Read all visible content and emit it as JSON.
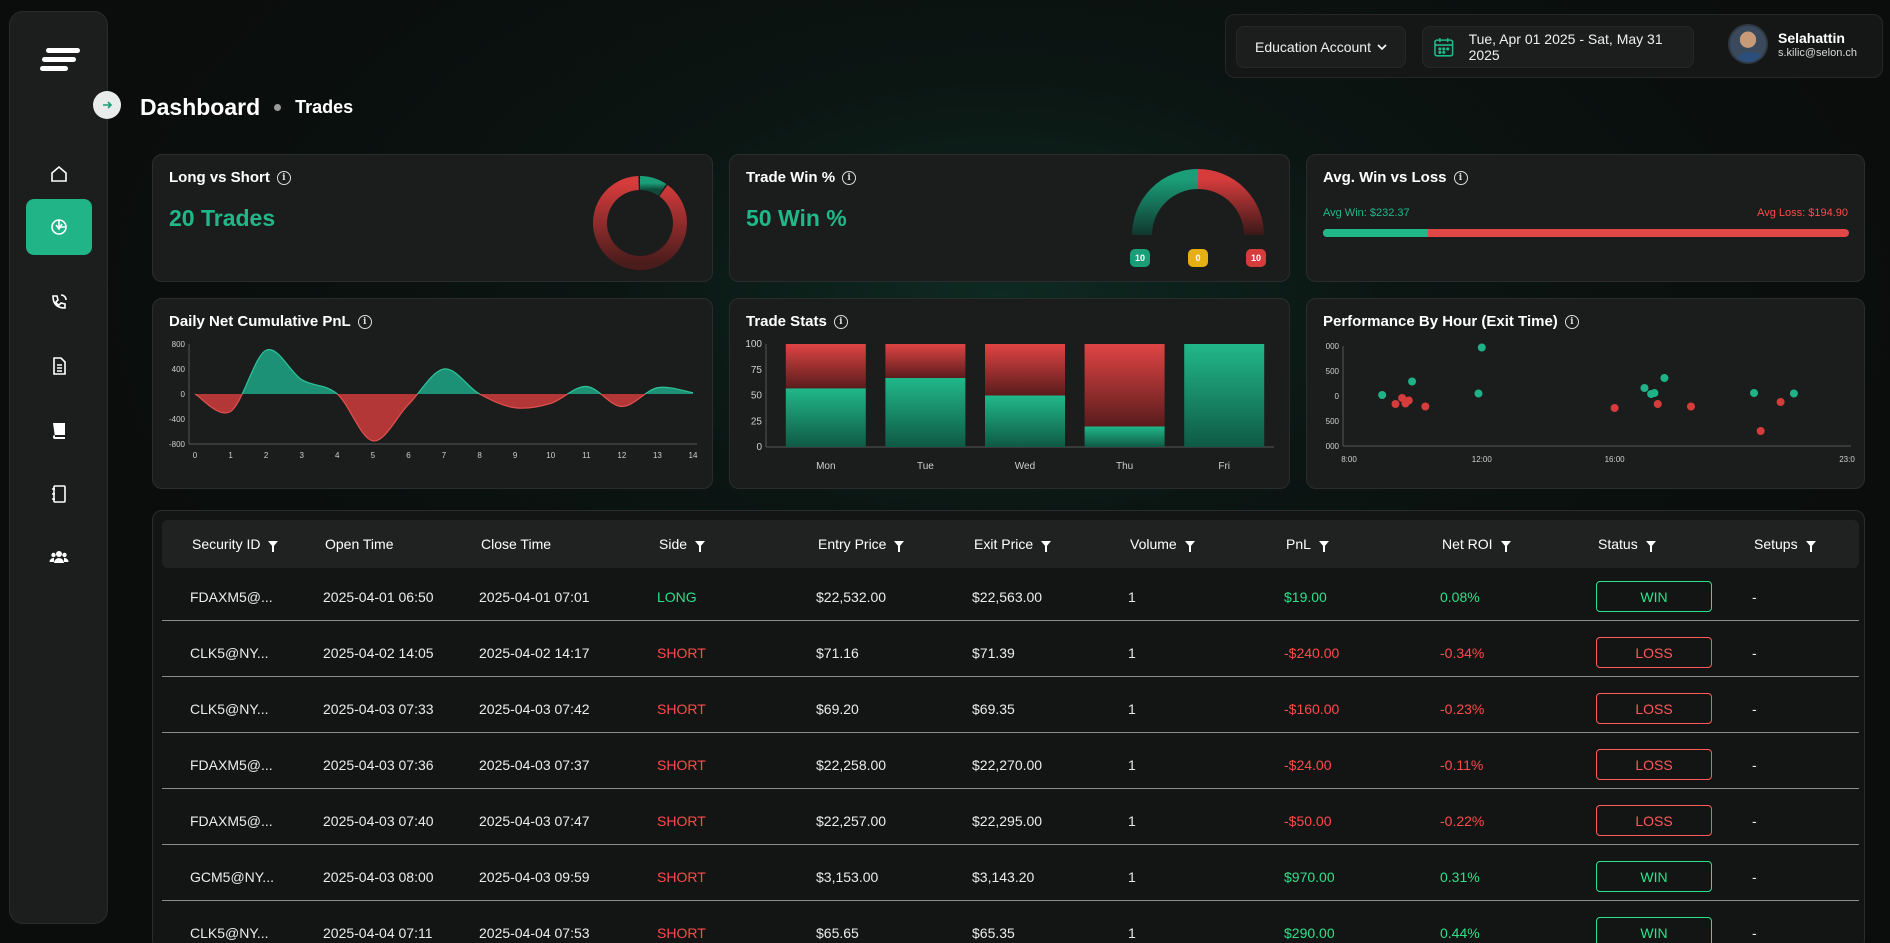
{
  "header": {
    "account_label": "Education Account",
    "date_range": "Tue, Apr 01 2025 - Sat, May 31 2025",
    "user_name": "Selahattin",
    "user_email": "s.kilic@selon.ch"
  },
  "breadcrumb": {
    "main": "Dashboard",
    "sub": "Trades"
  },
  "sidebar": {
    "items": [
      {
        "icon": "home-icon"
      },
      {
        "icon": "trades-icon",
        "active": true
      },
      {
        "icon": "phone-icon"
      },
      {
        "icon": "notes-icon"
      },
      {
        "icon": "journal-icon"
      },
      {
        "icon": "playbook-icon"
      },
      {
        "icon": "community-icon"
      }
    ]
  },
  "cards": {
    "long_short": {
      "title": "Long vs Short",
      "value": "20 Trades"
    },
    "win_pct": {
      "title": "Trade Win %",
      "value": "50 Win %",
      "legend": [
        "10",
        "0",
        "10"
      ]
    },
    "avg_win_loss": {
      "title": "Avg. Win vs Loss",
      "avg_win": "Avg Win: $232.37",
      "avg_loss": "Avg Loss: $194.90",
      "win_fraction": 0.2
    },
    "daily_pnl": {
      "title": "Daily Net Cumulative PnL"
    },
    "trade_stats": {
      "title": "Trade Stats"
    },
    "perf_hour": {
      "title": "Performance By Hour (Exit Time)"
    }
  },
  "chart_data": [
    {
      "type": "donut",
      "name": "long-vs-short",
      "values": [
        2,
        18
      ],
      "colors": [
        "#1a9e78",
        "#d63c3c"
      ]
    },
    {
      "type": "gauge",
      "name": "trade-win-pct",
      "values": [
        10,
        0,
        10
      ],
      "colors": [
        "#1a9e78",
        "#e6b012",
        "#d63c3c"
      ]
    },
    {
      "type": "area",
      "name": "daily-net-cumulative-pnl",
      "x": [
        0,
        1,
        2,
        3,
        4,
        5,
        6,
        7,
        8,
        9,
        10,
        11,
        12,
        13,
        14
      ],
      "y": [
        0,
        -280,
        700,
        230,
        0,
        -750,
        -170,
        400,
        0,
        -220,
        -150,
        120,
        -200,
        100,
        20
      ],
      "yticks": [
        "800",
        "400",
        "0",
        "-400",
        "-800"
      ],
      "ylim": [
        -800,
        800
      ],
      "xlim": [
        0,
        14
      ],
      "colors": {
        "positive": "#1e9e80",
        "negative": "#c43b3b"
      }
    },
    {
      "type": "bar",
      "name": "trade-stats",
      "categories": [
        "Mon",
        "Tue",
        "Wed",
        "Thu",
        "Fri"
      ],
      "series": [
        {
          "values": [
            57,
            67,
            50,
            20,
            100
          ],
          "color": "#1fb187"
        },
        {
          "values": [
            43,
            33,
            50,
            80,
            0
          ],
          "color": "#d63c3c"
        }
      ],
      "yticks": [
        "100",
        "75",
        "50",
        "25",
        "0"
      ],
      "ylim": [
        0,
        100
      ]
    },
    {
      "type": "scatter",
      "name": "performance-by-hour",
      "xticks": [
        "8:00",
        "12:00",
        "16:00",
        "23:0"
      ],
      "xtick_hours": [
        8,
        12,
        16,
        23
      ],
      "yticks": [
        "000",
        "500",
        "0",
        "500",
        "000"
      ],
      "ylim": [
        -1000,
        1000
      ],
      "points": [
        {
          "x": 9.0,
          "y": 20,
          "win": true
        },
        {
          "x": 9.4,
          "y": -160,
          "win": false
        },
        {
          "x": 9.6,
          "y": -40,
          "win": false
        },
        {
          "x": 9.7,
          "y": -150,
          "win": false
        },
        {
          "x": 9.8,
          "y": -90,
          "win": false
        },
        {
          "x": 9.9,
          "y": 290,
          "win": true
        },
        {
          "x": 10.3,
          "y": -210,
          "win": false
        },
        {
          "x": 11.9,
          "y": 50,
          "win": true
        },
        {
          "x": 12.0,
          "y": 970,
          "win": true
        },
        {
          "x": 16.0,
          "y": -240,
          "win": false
        },
        {
          "x": 16.9,
          "y": 160,
          "win": true
        },
        {
          "x": 17.1,
          "y": 40,
          "win": true
        },
        {
          "x": 17.2,
          "y": 60,
          "win": true
        },
        {
          "x": 17.5,
          "y": 360,
          "win": true
        },
        {
          "x": 17.3,
          "y": -160,
          "win": false
        },
        {
          "x": 18.3,
          "y": -210,
          "win": false
        },
        {
          "x": 20.2,
          "y": 60,
          "win": true
        },
        {
          "x": 20.4,
          "y": -700,
          "win": false
        },
        {
          "x": 21.0,
          "y": -120,
          "win": false
        },
        {
          "x": 21.4,
          "y": 50,
          "win": true
        }
      ]
    }
  ],
  "table": {
    "headers": [
      "Security ID",
      "Open Time",
      "Close Time",
      "Side",
      "Entry Price",
      "Exit Price",
      "Volume",
      "PnL",
      "Net ROI",
      "Status",
      "Setups"
    ],
    "filterable": [
      true,
      false,
      false,
      true,
      true,
      true,
      true,
      true,
      true,
      true,
      true
    ],
    "rows": [
      {
        "security": "FDAXM5@...",
        "open": "2025-04-01 06:50",
        "close": "2025-04-01 07:01",
        "side": "LONG",
        "entry": "$22,532.00",
        "exit": "$22,563.00",
        "volume": "1",
        "pnl": "$19.00",
        "roi": "0.08%",
        "status": "WIN",
        "setups": "-"
      },
      {
        "security": "CLK5@NY...",
        "open": "2025-04-02 14:05",
        "close": "2025-04-02 14:17",
        "side": "SHORT",
        "entry": "$71.16",
        "exit": "$71.39",
        "volume": "1",
        "pnl": "-$240.00",
        "roi": "-0.34%",
        "status": "LOSS",
        "setups": "-"
      },
      {
        "security": "CLK5@NY...",
        "open": "2025-04-03 07:33",
        "close": "2025-04-03 07:42",
        "side": "SHORT",
        "entry": "$69.20",
        "exit": "$69.35",
        "volume": "1",
        "pnl": "-$160.00",
        "roi": "-0.23%",
        "status": "LOSS",
        "setups": "-"
      },
      {
        "security": "FDAXM5@...",
        "open": "2025-04-03 07:36",
        "close": "2025-04-03 07:37",
        "side": "SHORT",
        "entry": "$22,258.00",
        "exit": "$22,270.00",
        "volume": "1",
        "pnl": "-$24.00",
        "roi": "-0.11%",
        "status": "LOSS",
        "setups": "-"
      },
      {
        "security": "FDAXM5@...",
        "open": "2025-04-03 07:40",
        "close": "2025-04-03 07:47",
        "side": "SHORT",
        "entry": "$22,257.00",
        "exit": "$22,295.00",
        "volume": "1",
        "pnl": "-$50.00",
        "roi": "-0.22%",
        "status": "LOSS",
        "setups": "-"
      },
      {
        "security": "GCM5@NY...",
        "open": "2025-04-03 08:00",
        "close": "2025-04-03 09:59",
        "side": "SHORT",
        "entry": "$3,153.00",
        "exit": "$3,143.20",
        "volume": "1",
        "pnl": "$970.00",
        "roi": "0.31%",
        "status": "WIN",
        "setups": "-"
      },
      {
        "security": "CLK5@NY...",
        "open": "2025-04-04 07:11",
        "close": "2025-04-04 07:53",
        "side": "SHORT",
        "entry": "$65.65",
        "exit": "$65.35",
        "volume": "1",
        "pnl": "$290.00",
        "roi": "0.44%",
        "status": "WIN",
        "setups": "-"
      }
    ]
  }
}
